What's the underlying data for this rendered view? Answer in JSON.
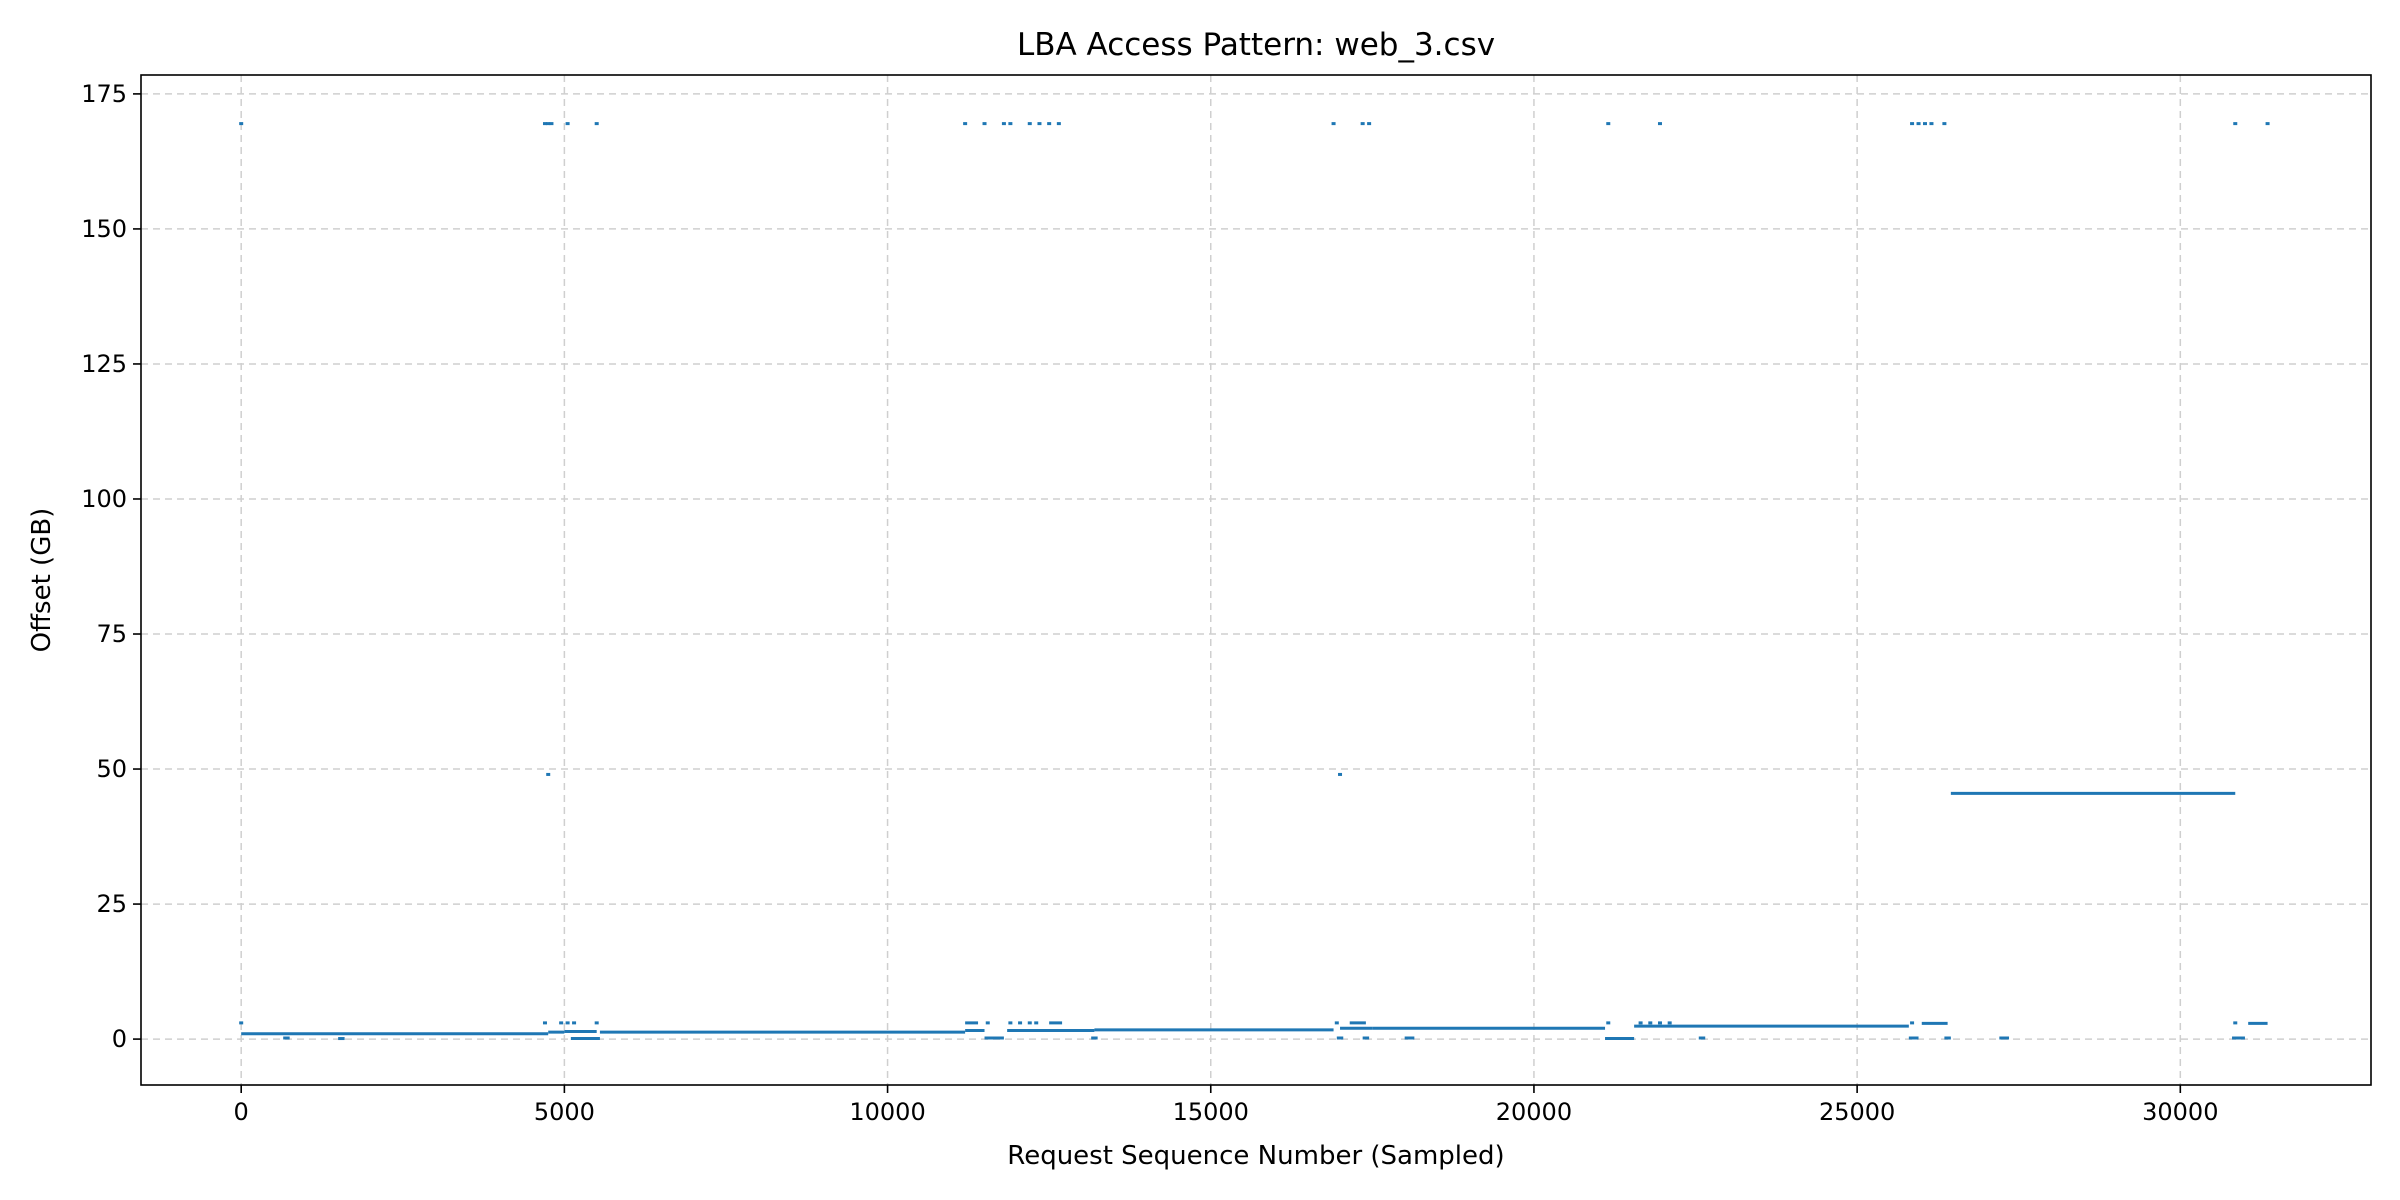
{
  "chart_data": {
    "type": "scatter",
    "title": "LBA Access Pattern: web_3.csv",
    "xlabel": "Request Sequence Number (Sampled)",
    "ylabel": "Offset (GB)",
    "xlim": [
      -1550,
      32950
    ],
    "ylim": [
      -8.5,
      178.5
    ],
    "xticks": [
      0,
      5000,
      10000,
      15000,
      20000,
      25000,
      30000
    ],
    "yticks": [
      0,
      25,
      50,
      75,
      100,
      125,
      150,
      175
    ],
    "grid": true,
    "color": "#1f77b4",
    "series": [
      {
        "segments": [
          {
            "x": [
              0,
              4750
            ],
            "y": 1.0
          },
          {
            "x": [
              4750,
              5000
            ],
            "y": 1.3
          },
          {
            "x": [
              5000,
              5500
            ],
            "y": 1.4
          },
          {
            "x": [
              5550,
              11200
            ],
            "y": 1.3
          },
          {
            "x": [
              11200,
              11500
            ],
            "y": 1.6
          },
          {
            "x": [
              11850,
              13200
            ],
            "y": 1.6
          },
          {
            "x": [
              13200,
              16900
            ],
            "y": 1.7
          },
          {
            "x": [
              17000,
              17500
            ],
            "y": 2.0
          },
          {
            "x": [
              17500,
              21100
            ],
            "y": 2.0
          },
          {
            "x": [
              21550,
              25800
            ],
            "y": 2.4
          },
          {
            "x": [
              26450,
              30850
            ],
            "y": 45.5
          },
          {
            "x": [
              650,
              750
            ],
            "y": 0.2
          },
          {
            "x": [
              1500,
              1600
            ],
            "y": 0.1
          },
          {
            "x": [
              5100,
              5550
            ],
            "y": 0.1
          },
          {
            "x": [
              11500,
              11800
            ],
            "y": 0.2
          },
          {
            "x": [
              13150,
              13250
            ],
            "y": 0.2
          },
          {
            "x": [
              16950,
              17050
            ],
            "y": 0.2
          },
          {
            "x": [
              17350,
              17450
            ],
            "y": 0.2
          },
          {
            "x": [
              18000,
              18150
            ],
            "y": 0.2
          },
          {
            "x": [
              21100,
              21550
            ],
            "y": 0.1
          },
          {
            "x": [
              22550,
              22650
            ],
            "y": 0.2
          },
          {
            "x": [
              25800,
              25950
            ],
            "y": 0.2
          },
          {
            "x": [
              26350,
              26450
            ],
            "y": 0.2
          },
          {
            "x": [
              27200,
              27350
            ],
            "y": 0.2
          },
          {
            "x": [
              30800,
              31000
            ],
            "y": 0.2
          },
          {
            "x": [
              26000,
              26400
            ],
            "y": 2.9
          },
          {
            "x": [
              31050,
              31350
            ],
            "y": 2.9
          },
          {
            "x": [
              17150,
              17400
            ],
            "y": 3.0
          },
          {
            "x": [
              11200,
              11400
            ],
            "y": 3.0
          },
          {
            "x": [
              12500,
              12700
            ],
            "y": 3.0
          }
        ],
        "points": [
          {
            "x": 0,
            "y": 169.5
          },
          {
            "x": 0,
            "y": 3.0
          },
          {
            "x": 4700,
            "y": 169.5
          },
          {
            "x": 4750,
            "y": 169.5
          },
          {
            "x": 4800,
            "y": 169.5
          },
          {
            "x": 5050,
            "y": 169.5
          },
          {
            "x": 5500,
            "y": 169.5
          },
          {
            "x": 4750,
            "y": 49.0
          },
          {
            "x": 4700,
            "y": 3.0
          },
          {
            "x": 4950,
            "y": 3.0
          },
          {
            "x": 5050,
            "y": 3.0
          },
          {
            "x": 5150,
            "y": 3.0
          },
          {
            "x": 5500,
            "y": 3.0
          },
          {
            "x": 11200,
            "y": 169.5
          },
          {
            "x": 11500,
            "y": 169.5
          },
          {
            "x": 11800,
            "y": 169.5
          },
          {
            "x": 11900,
            "y": 169.5
          },
          {
            "x": 12200,
            "y": 169.5
          },
          {
            "x": 12350,
            "y": 169.5
          },
          {
            "x": 12500,
            "y": 169.5
          },
          {
            "x": 12650,
            "y": 169.5
          },
          {
            "x": 11550,
            "y": 3.0
          },
          {
            "x": 11900,
            "y": 3.0
          },
          {
            "x": 12050,
            "y": 3.0
          },
          {
            "x": 12200,
            "y": 3.0
          },
          {
            "x": 12300,
            "y": 3.0
          },
          {
            "x": 16900,
            "y": 169.5
          },
          {
            "x": 17350,
            "y": 169.5
          },
          {
            "x": 17450,
            "y": 169.5
          },
          {
            "x": 17000,
            "y": 49.0
          },
          {
            "x": 16950,
            "y": 3.0
          },
          {
            "x": 21150,
            "y": 169.5
          },
          {
            "x": 21950,
            "y": 169.5
          },
          {
            "x": 21150,
            "y": 3.0
          },
          {
            "x": 21650,
            "y": 3.0
          },
          {
            "x": 21800,
            "y": 3.0
          },
          {
            "x": 21950,
            "y": 3.0
          },
          {
            "x": 22100,
            "y": 3.0
          },
          {
            "x": 25850,
            "y": 169.5
          },
          {
            "x": 25950,
            "y": 169.5
          },
          {
            "x": 26050,
            "y": 169.5
          },
          {
            "x": 26150,
            "y": 169.5
          },
          {
            "x": 26350,
            "y": 169.5
          },
          {
            "x": 25850,
            "y": 3.0
          },
          {
            "x": 30850,
            "y": 169.5
          },
          {
            "x": 31350,
            "y": 169.5
          },
          {
            "x": 30850,
            "y": 3.0
          }
        ]
      }
    ]
  }
}
